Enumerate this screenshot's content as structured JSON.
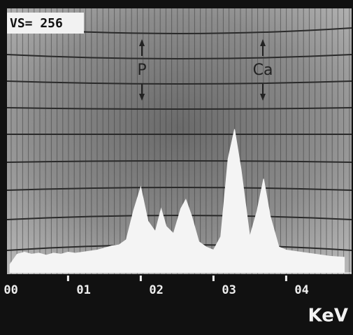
{
  "chart_data": {
    "type": "area",
    "title": "VS= 256",
    "x_label": "KeV",
    "annotations": [
      "P",
      "Ca"
    ],
    "x": [
      0.2,
      0.3,
      0.4,
      0.5,
      0.6,
      0.7,
      0.8,
      0.9,
      1.0,
      1.1,
      1.2,
      1.3,
      1.4,
      1.5,
      1.6,
      1.7,
      1.8,
      1.9,
      2.0,
      2.1,
      2.2,
      2.28,
      2.35,
      2.45,
      2.55,
      2.62,
      2.7,
      2.8,
      2.9,
      3.0,
      3.1,
      3.2,
      3.29,
      3.38,
      3.5,
      3.6,
      3.69,
      3.78,
      3.9,
      4.0,
      4.2,
      4.4,
      4.6,
      4.8
    ],
    "values": [
      8,
      18,
      20,
      18,
      19,
      17,
      19,
      18,
      20,
      19,
      20,
      21,
      22,
      24,
      26,
      27,
      32,
      60,
      83,
      50,
      40,
      62,
      45,
      38,
      62,
      71,
      55,
      30,
      25,
      22,
      35,
      110,
      139,
      100,
      35,
      60,
      91,
      55,
      25,
      22,
      20,
      18,
      16,
      15
    ],
    "color": "#f4f4f4",
    "xlim": [
      0.16,
      4.9
    ],
    "ylim": [
      0,
      256
    ],
    "xticks": [
      {
        "value": 0,
        "label": "00"
      },
      {
        "value": 1,
        "label": "01"
      },
      {
        "value": 2,
        "label": "02"
      },
      {
        "value": 3,
        "label": "03"
      },
      {
        "value": 4,
        "label": "04"
      }
    ]
  }
}
